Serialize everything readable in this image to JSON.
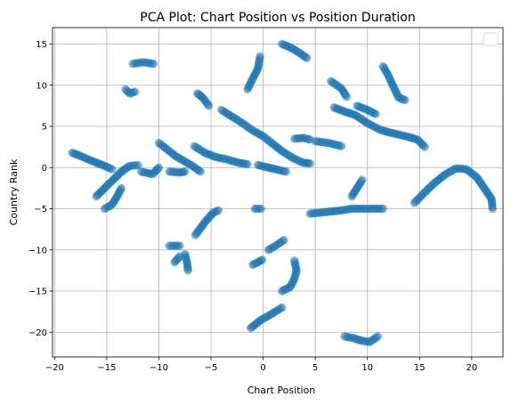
{
  "chart_data": {
    "type": "scatter",
    "title": "PCA Plot: Chart Position vs Position Duration",
    "xlabel": "Chart Position",
    "ylabel": "Country Rank",
    "xlim": [
      -20.2,
      23.0
    ],
    "ylim": [
      -23.0,
      17.0
    ],
    "xticks": [
      -20,
      -15,
      -10,
      -5,
      0,
      5,
      10,
      15,
      20
    ],
    "yticks": [
      -20,
      -15,
      -10,
      -5,
      0,
      5,
      10,
      15
    ],
    "grid": true,
    "legend": "top-right (empty)",
    "color": "#1f77b4",
    "strokes": [
      [
        [
          -18.3,
          1.8
        ],
        [
          -17.5,
          1.4
        ],
        [
          -16.8,
          1.0
        ],
        [
          -16.0,
          0.6
        ],
        [
          -15.2,
          0.2
        ],
        [
          -14.5,
          -0.2
        ]
      ],
      [
        [
          -16.0,
          -3.5
        ],
        [
          -15.2,
          -2.5
        ],
        [
          -14.4,
          -1.5
        ],
        [
          -13.5,
          -0.4
        ],
        [
          -12.8,
          0.2
        ],
        [
          -12.0,
          0.3
        ]
      ],
      [
        [
          -15.2,
          -5.0
        ],
        [
          -14.5,
          -4.5
        ],
        [
          -14.0,
          -3.5
        ],
        [
          -13.6,
          -2.5
        ]
      ],
      [
        [
          -12.5,
          12.6
        ],
        [
          -11.5,
          12.8
        ],
        [
          -10.5,
          12.6
        ]
      ],
      [
        [
          -13.2,
          9.5
        ],
        [
          -12.8,
          9.0
        ],
        [
          -12.3,
          9.2
        ]
      ],
      [
        [
          -11.7,
          -0.5
        ],
        [
          -10.6,
          -0.8
        ],
        [
          -10.0,
          0.0
        ]
      ],
      [
        [
          -10.0,
          3.0
        ],
        [
          -9.2,
          2.2
        ],
        [
          -8.4,
          1.4
        ],
        [
          -7.6,
          0.8
        ],
        [
          -6.8,
          0.2
        ],
        [
          -6.0,
          -0.5
        ]
      ],
      [
        [
          -9.0,
          -0.5
        ],
        [
          -8.0,
          -0.6
        ],
        [
          -7.5,
          -0.5
        ]
      ],
      [
        [
          -6.6,
          2.6
        ],
        [
          -5.6,
          1.8
        ],
        [
          -4.6,
          1.3
        ],
        [
          -3.5,
          1.0
        ],
        [
          -2.4,
          0.6
        ],
        [
          -1.5,
          0.4
        ]
      ],
      [
        [
          -6.3,
          9.0
        ],
        [
          -5.8,
          8.5
        ],
        [
          -5.2,
          7.5
        ]
      ],
      [
        [
          -4.0,
          7.0
        ],
        [
          -3.0,
          6.2
        ],
        [
          -2.0,
          5.4
        ],
        [
          -1.0,
          4.5
        ],
        [
          0.0,
          3.8
        ],
        [
          0.8,
          3.0
        ],
        [
          1.8,
          2.0
        ],
        [
          2.8,
          1.2
        ],
        [
          3.8,
          0.6
        ],
        [
          4.5,
          0.5
        ]
      ],
      [
        [
          -0.5,
          0.3
        ],
        [
          0.5,
          0.0
        ],
        [
          1.5,
          -0.3
        ],
        [
          2.2,
          -0.5
        ]
      ],
      [
        [
          -1.5,
          9.5
        ],
        [
          -1.0,
          10.8
        ],
        [
          -0.5,
          12.0
        ],
        [
          -0.3,
          13.5
        ]
      ],
      [
        [
          -8.5,
          -11.5
        ],
        [
          -8.0,
          -10.8
        ]
      ],
      [
        [
          -9.0,
          -9.5
        ],
        [
          -8.0,
          -9.5
        ]
      ],
      [
        [
          -7.5,
          -10.5
        ],
        [
          -7.3,
          -11.5
        ],
        [
          -7.2,
          -12.5
        ]
      ],
      [
        [
          -6.5,
          -8.2
        ],
        [
          -5.5,
          -6.5
        ],
        [
          -4.8,
          -5.5
        ],
        [
          -4.3,
          -5.2
        ]
      ],
      [
        [
          -1.0,
          -11.8
        ],
        [
          -0.5,
          -11.5
        ],
        [
          -0.1,
          -11.2
        ]
      ],
      [
        [
          -0.8,
          -5.0
        ],
        [
          -0.2,
          -5.0
        ]
      ],
      [
        [
          0.5,
          -10.0
        ],
        [
          1.2,
          -9.5
        ],
        [
          2.0,
          -8.8
        ]
      ],
      [
        [
          -1.2,
          -19.5
        ],
        [
          -0.2,
          -18.5
        ],
        [
          0.8,
          -17.8
        ],
        [
          1.8,
          -17.0
        ]
      ],
      [
        [
          1.8,
          -15.0
        ],
        [
          2.6,
          -14.5
        ],
        [
          3.0,
          -13.5
        ],
        [
          3.2,
          -12.5
        ],
        [
          3.0,
          -11.3
        ]
      ],
      [
        [
          1.8,
          15.0
        ],
        [
          2.6,
          14.6
        ],
        [
          3.4,
          14.0
        ],
        [
          4.2,
          13.3
        ]
      ],
      [
        [
          3.0,
          3.5
        ],
        [
          3.8,
          3.6
        ],
        [
          4.5,
          3.4
        ]
      ],
      [
        [
          5.0,
          3.2
        ],
        [
          6.2,
          3.0
        ],
        [
          7.5,
          2.6
        ]
      ],
      [
        [
          4.5,
          -5.6
        ],
        [
          6.0,
          -5.4
        ],
        [
          7.5,
          -5.2
        ],
        [
          8.5,
          -5.0
        ],
        [
          10.0,
          -5.0
        ],
        [
          11.5,
          -5.0
        ]
      ],
      [
        [
          8.5,
          -3.5
        ],
        [
          9.0,
          -2.5
        ],
        [
          9.5,
          -1.5
        ]
      ],
      [
        [
          6.5,
          10.5
        ],
        [
          7.5,
          9.6
        ],
        [
          8.0,
          8.6
        ]
      ],
      [
        [
          6.8,
          7.3
        ],
        [
          7.8,
          6.8
        ],
        [
          8.8,
          6.4
        ],
        [
          10.0,
          5.4
        ],
        [
          11.2,
          4.6
        ],
        [
          12.0,
          4.3
        ],
        [
          13.0,
          4.0
        ],
        [
          14.0,
          3.7
        ],
        [
          14.8,
          3.4
        ],
        [
          15.5,
          2.5
        ]
      ],
      [
        [
          9.0,
          7.5
        ],
        [
          10.0,
          7.0
        ],
        [
          10.8,
          6.5
        ]
      ],
      [
        [
          11.5,
          12.3
        ],
        [
          12.0,
          11.2
        ],
        [
          12.5,
          9.8
        ],
        [
          13.0,
          8.5
        ],
        [
          13.6,
          8.2
        ]
      ],
      [
        [
          7.8,
          -20.5
        ],
        [
          8.6,
          -20.7
        ],
        [
          9.4,
          -21.0
        ],
        [
          10.2,
          -21.2
        ],
        [
          11.0,
          -20.5
        ]
      ],
      [
        [
          14.5,
          -4.3
        ],
        [
          15.5,
          -3.0
        ],
        [
          16.5,
          -1.8
        ],
        [
          17.5,
          -0.8
        ],
        [
          18.5,
          -0.1
        ],
        [
          19.5,
          -0.2
        ],
        [
          20.5,
          -1.2
        ],
        [
          21.2,
          -2.5
        ],
        [
          21.9,
          -3.8
        ],
        [
          22.0,
          -5.0
        ]
      ]
    ]
  }
}
